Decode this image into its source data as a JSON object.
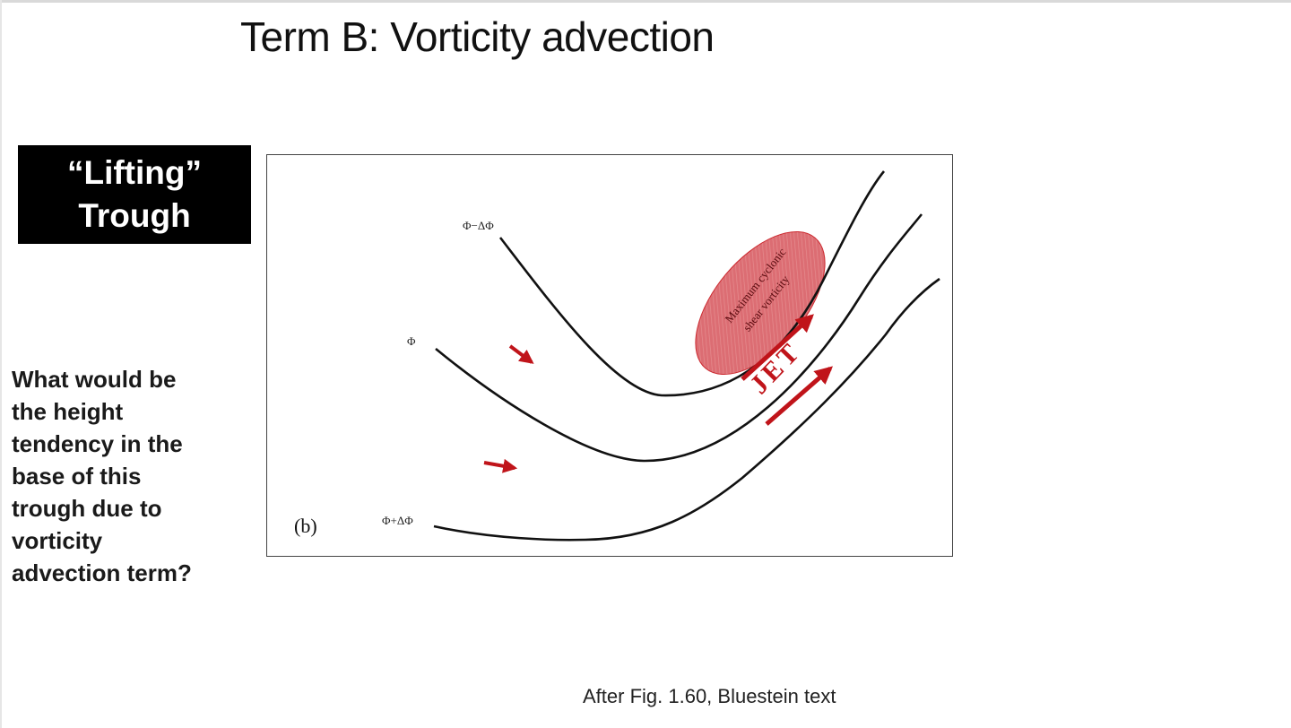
{
  "slide": {
    "title": "Term B:  Vorticity advection",
    "label_lines": [
      "“Lifting”",
      "Trough"
    ],
    "question_lines": [
      "What would be",
      "the height",
      "tendency in the",
      "base of this",
      "trough due to",
      "vorticity",
      "advection term?"
    ],
    "caption": "After Fig. 1.60, Bluestein text"
  },
  "figure": {
    "panel_label": "(b)",
    "contours": [
      {
        "label": "Φ−ΔΦ"
      },
      {
        "label": "Φ"
      },
      {
        "label": "Φ+ΔΦ"
      }
    ],
    "jet_label": "JET",
    "vorticity_label_lines": [
      "Maximum cyclonic",
      "shear vorticity"
    ],
    "colors": {
      "contour": "#111111",
      "arrow": "#c0141a",
      "ellipse": "#cc2a30"
    }
  }
}
